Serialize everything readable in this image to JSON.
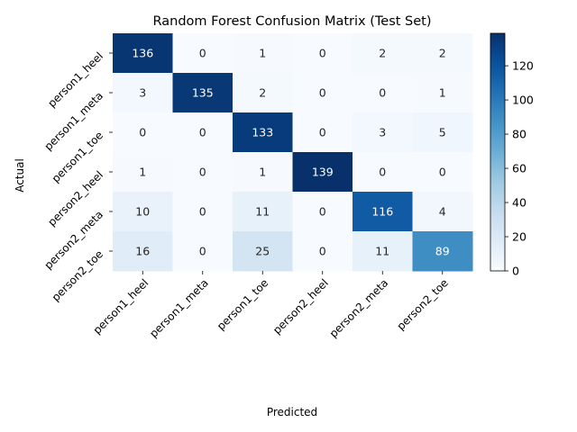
{
  "chart_data": {
    "type": "heatmap",
    "title": "Random Forest Confusion Matrix (Test Set)",
    "xlabel": "Predicted",
    "ylabel": "Actual",
    "x_categories": [
      "person1_heel",
      "person1_meta",
      "person1_toe",
      "person2_heel",
      "person2_meta",
      "person2_toe"
    ],
    "y_categories": [
      "person1_heel",
      "person1_meta",
      "person1_toe",
      "person2_heel",
      "person2_meta",
      "person2_toe"
    ],
    "matrix": [
      [
        136,
        0,
        1,
        0,
        2,
        2
      ],
      [
        3,
        135,
        2,
        0,
        0,
        1
      ],
      [
        0,
        0,
        133,
        0,
        3,
        5
      ],
      [
        1,
        0,
        1,
        139,
        0,
        0
      ],
      [
        10,
        0,
        11,
        0,
        116,
        4
      ],
      [
        16,
        0,
        25,
        0,
        11,
        89
      ]
    ],
    "colorbar": {
      "colormap": "Blues",
      "min": 0,
      "max": 139,
      "ticks": [
        0,
        20,
        40,
        60,
        80,
        100,
        120
      ],
      "colors": [
        "#f7fbff",
        "#deebf7",
        "#c6dbef",
        "#9ecae1",
        "#6baed6",
        "#4292c6",
        "#2171b5",
        "#08519c",
        "#08306b"
      ]
    }
  }
}
